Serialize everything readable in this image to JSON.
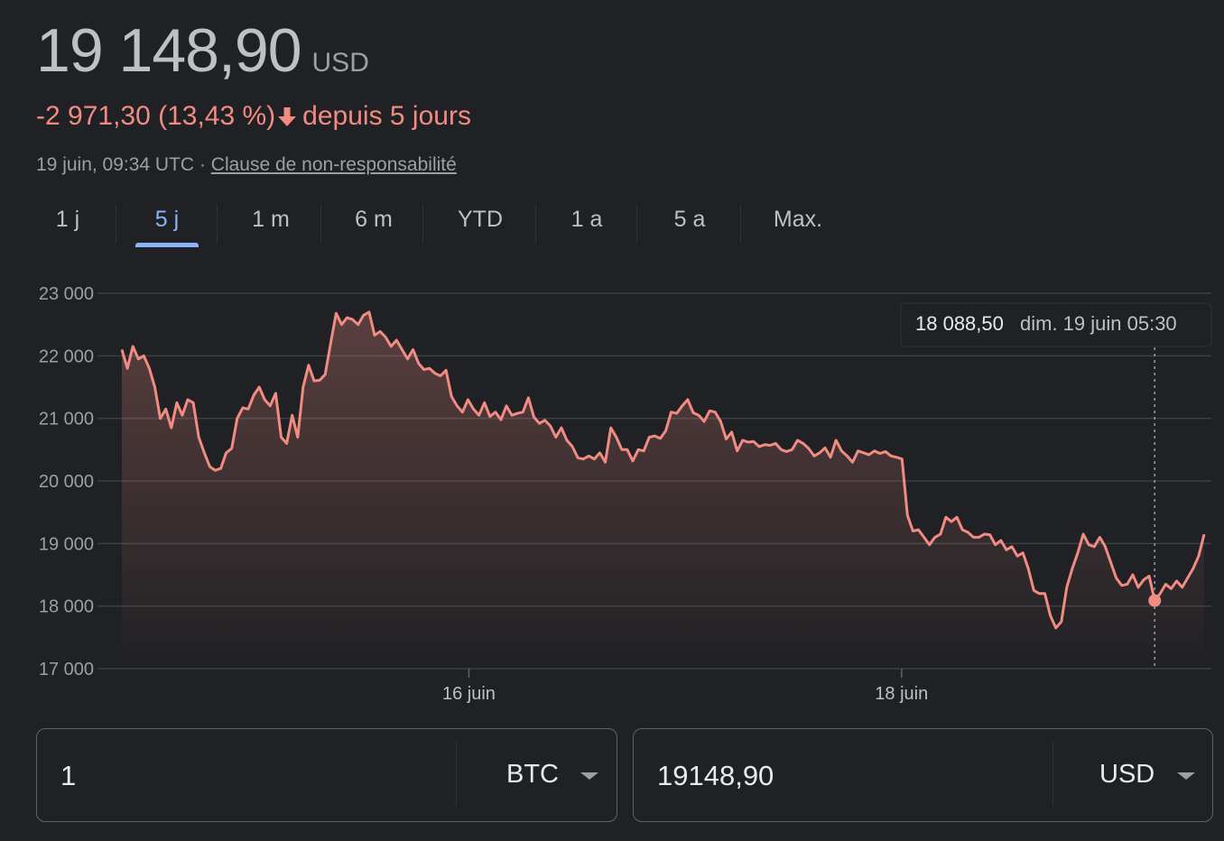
{
  "header": {
    "price": "19 148,90",
    "currency": "USD",
    "change": "-2 971,30 (13,43 %)",
    "change_period": "depuis 5 jours",
    "timestamp": "19 juin, 09:34 UTC",
    "separator": " · ",
    "disclaimer": "Clause de non-responsabilité"
  },
  "tabs": [
    {
      "label": "1 j",
      "active": false
    },
    {
      "label": "5 j",
      "active": true
    },
    {
      "label": "1 m",
      "active": false
    },
    {
      "label": "6 m",
      "active": false
    },
    {
      "label": "YTD",
      "active": false
    },
    {
      "label": "1 a",
      "active": false
    },
    {
      "label": "5 a",
      "active": false
    },
    {
      "label": "Max.",
      "active": false
    }
  ],
  "colors": {
    "line": "#f28b82",
    "accent": "#8ab4f8",
    "background": "#202124"
  },
  "chart_data": {
    "type": "area",
    "title": "",
    "xlabel": "",
    "ylabel": "",
    "y_ticks": [
      "23 000",
      "22 000",
      "21 000",
      "20 000",
      "19 000",
      "18 000",
      "17 000"
    ],
    "y_tick_values": [
      23000,
      22000,
      21000,
      20000,
      19000,
      18000,
      17000
    ],
    "ylim": [
      17000,
      23000
    ],
    "xlim": [
      "14 juin 09:30",
      "19 juin 09:34"
    ],
    "x_ticks": [
      {
        "label": "16 juin",
        "x": "16 juin 00:00"
      },
      {
        "label": "18 juin",
        "x": "18 juin 00:00"
      }
    ],
    "grid": true,
    "tooltip": {
      "value": "18 088,50",
      "time": "dim. 19 juin 05:30"
    },
    "series": [
      {
        "values": [
          22100,
          21800,
          22150,
          21950,
          22000,
          21800,
          21500,
          21000,
          21150,
          20850,
          21250,
          21050,
          21300,
          21250,
          20700,
          20450,
          20230,
          20170,
          20200,
          20450,
          20520,
          21000,
          21170,
          21150,
          21370,
          21500,
          21300,
          21200,
          21400,
          20700,
          20600,
          21050,
          20700,
          21500,
          21850,
          21600,
          21610,
          21700,
          22200,
          22680,
          22500,
          22610,
          22580,
          22500,
          22650,
          22700,
          22330,
          22390,
          22300,
          22150,
          22250,
          22100,
          21950,
          22100,
          21880,
          21780,
          21800,
          21720,
          21680,
          21770,
          21350,
          21200,
          21100,
          21300,
          21150,
          21050,
          21250,
          21030,
          21100,
          20980,
          21200,
          21050,
          21080,
          21100,
          21330,
          21020,
          20920,
          20970,
          20880,
          20700,
          20850,
          20650,
          20550,
          20370,
          20350,
          20400,
          20350,
          20450,
          20300,
          20850,
          20700,
          20500,
          20500,
          20320,
          20500,
          20480,
          20700,
          20720,
          20680,
          20800,
          21100,
          21080,
          21200,
          21300,
          21090,
          21050,
          20950,
          21120,
          21100,
          20950,
          20670,
          20780,
          20480,
          20650,
          20620,
          20630,
          20550,
          20580,
          20570,
          20600,
          20500,
          20470,
          20500,
          20650,
          20600,
          20520,
          20400,
          20450,
          20530,
          20380,
          20650,
          20480,
          20400,
          20300,
          20480,
          20450,
          20420,
          20480,
          20440,
          20470,
          20400,
          20380,
          20350,
          19450,
          19200,
          19220,
          19100,
          18980,
          19100,
          19150,
          19420,
          19350,
          19420,
          19220,
          19180,
          19100,
          19100,
          19150,
          19140,
          18980,
          19050,
          18900,
          18950,
          18800,
          18850,
          18600,
          18250,
          18200,
          18200,
          17850,
          17650,
          17750,
          18300,
          18600,
          18850,
          19150,
          18980,
          18950,
          19100,
          18950,
          18700,
          18450,
          18330,
          18350,
          18500,
          18300,
          18420,
          18480,
          18088,
          18200,
          18350,
          18280,
          18400,
          18300,
          18450,
          18600,
          18800,
          19148
        ]
      }
    ]
  },
  "converter": {
    "left_value": "1",
    "left_unit": "BTC",
    "right_value": "19148,90",
    "right_unit": "USD"
  }
}
